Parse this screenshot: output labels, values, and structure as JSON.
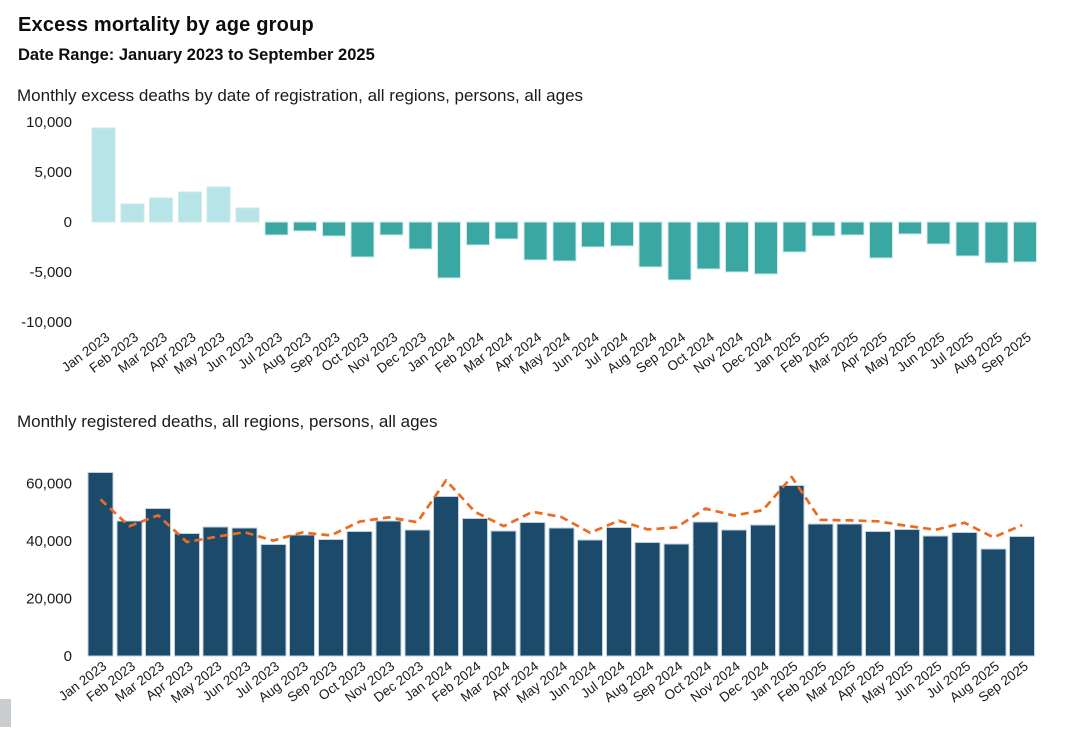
{
  "page": {
    "title": "Excess mortality by age group",
    "subtitle": "Date Range: January 2023 to September 2025"
  },
  "colors": {
    "excess_positive": "#b7e4e6",
    "excess_negative": "#3ba7a2",
    "registered_bar": "#1b4a6b",
    "trend_line": "#ed6a21",
    "scroll_thumb": "#c9cdd0"
  },
  "chart_data": [
    {
      "type": "bar",
      "title": "Monthly excess deaths by date of registration, all regions, persons, all ages",
      "categories": [
        "Jan 2023",
        "Feb 2023",
        "Mar 2023",
        "Apr 2023",
        "May 2023",
        "Jun 2023",
        "Jul 2023",
        "Aug 2023",
        "Sep 2023",
        "Oct 2023",
        "Nov 2023",
        "Dec 2023",
        "Jan 2024",
        "Feb 2024",
        "Mar 2024",
        "Apr 2024",
        "May 2024",
        "Jun 2024",
        "Jul 2024",
        "Aug 2024",
        "Sep 2024",
        "Oct 2024",
        "Nov 2024",
        "Dec 2024",
        "Jan 2025",
        "Feb 2025",
        "Mar 2025",
        "Apr 2025",
        "May 2025",
        "Jun 2025",
        "Jul 2025",
        "Aug 2025",
        "Sep 2025"
      ],
      "values": [
        9400,
        1800,
        2400,
        3000,
        3500,
        1400,
        -1300,
        -900,
        -1400,
        -3500,
        -1300,
        -2700,
        -5600,
        -2300,
        -1700,
        -3800,
        -3900,
        -2500,
        -2400,
        -4500,
        -5800,
        -4700,
        -5000,
        -5200,
        -3000,
        -1400,
        -1300,
        -3600,
        -1200,
        -2200,
        -3400,
        -4100,
        -4000
      ],
      "xlabel": "",
      "ylabel": "",
      "ylim": [
        -10000,
        10000
      ],
      "yticks": [
        10000,
        5000,
        0,
        -5000,
        -10000
      ],
      "grid": false,
      "legend": "none",
      "positive_color": "#b7e4e6",
      "negative_color": "#3ba7a2"
    },
    {
      "type": "bar",
      "title": "Monthly registered deaths, all regions, persons, all ages",
      "categories": [
        "Jan 2023",
        "Feb 2023",
        "Mar 2023",
        "Apr 2023",
        "May 2023",
        "Jun 2023",
        "Jul 2023",
        "Aug 2023",
        "Sep 2023",
        "Oct 2023",
        "Nov 2023",
        "Dec 2023",
        "Jan 2024",
        "Feb 2024",
        "Mar 2024",
        "Apr 2024",
        "May 2024",
        "Jun 2024",
        "Jul 2024",
        "Aug 2024",
        "Sep 2024",
        "Oct 2024",
        "Nov 2024",
        "Dec 2024",
        "Jan 2025",
        "Feb 2025",
        "Mar 2025",
        "Apr 2025",
        "May 2025",
        "Jun 2025",
        "Jul 2025",
        "Aug 2025",
        "Sep 2025"
      ],
      "series": [
        {
          "name": "Registered deaths (bars)",
          "type": "bar",
          "color": "#1b4a6b",
          "values": [
            63800,
            46900,
            51300,
            42600,
            44900,
            44400,
            38800,
            42000,
            40500,
            43200,
            46900,
            43800,
            55400,
            47800,
            43400,
            46300,
            44400,
            40300,
            44600,
            39500,
            38900,
            46500,
            43800,
            45500,
            59200,
            45900,
            45800,
            43200,
            44000,
            41700,
            42900,
            37100,
            41500
          ]
        },
        {
          "name": "Trend (dashed line)",
          "type": "dashed-line",
          "color": "#ed6a21",
          "values": [
            54400,
            45100,
            48900,
            39600,
            41400,
            43000,
            40100,
            42900,
            41900,
            46700,
            48200,
            46500,
            61000,
            50100,
            45100,
            50100,
            48300,
            42800,
            47000,
            44000,
            44700,
            51200,
            48800,
            50700,
            62200,
            47300,
            47100,
            46800,
            45200,
            43900,
            46300,
            41200,
            45500
          ]
        }
      ],
      "xlabel": "",
      "ylabel": "",
      "ylim": [
        0,
        65000
      ],
      "yticks": [
        60000,
        40000,
        20000,
        0
      ],
      "grid": false,
      "legend": "none"
    }
  ]
}
